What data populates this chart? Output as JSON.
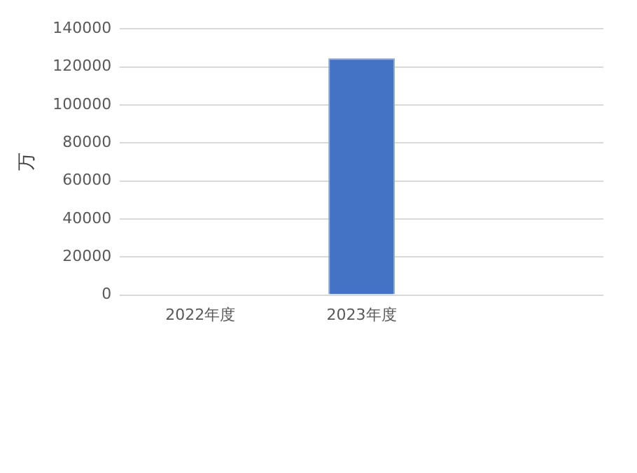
{
  "chart_data": {
    "type": "bar",
    "ylabel": "万",
    "categories": [
      "2022年度",
      "2023年度",
      null
    ],
    "values": [
      null,
      124500,
      null
    ],
    "color": "#4472c4",
    "ylim": [
      0,
      140000
    ],
    "yticks": [
      0,
      20000,
      40000,
      60000,
      80000,
      100000,
      120000,
      140000
    ],
    "grid": "y",
    "legend": false
  }
}
